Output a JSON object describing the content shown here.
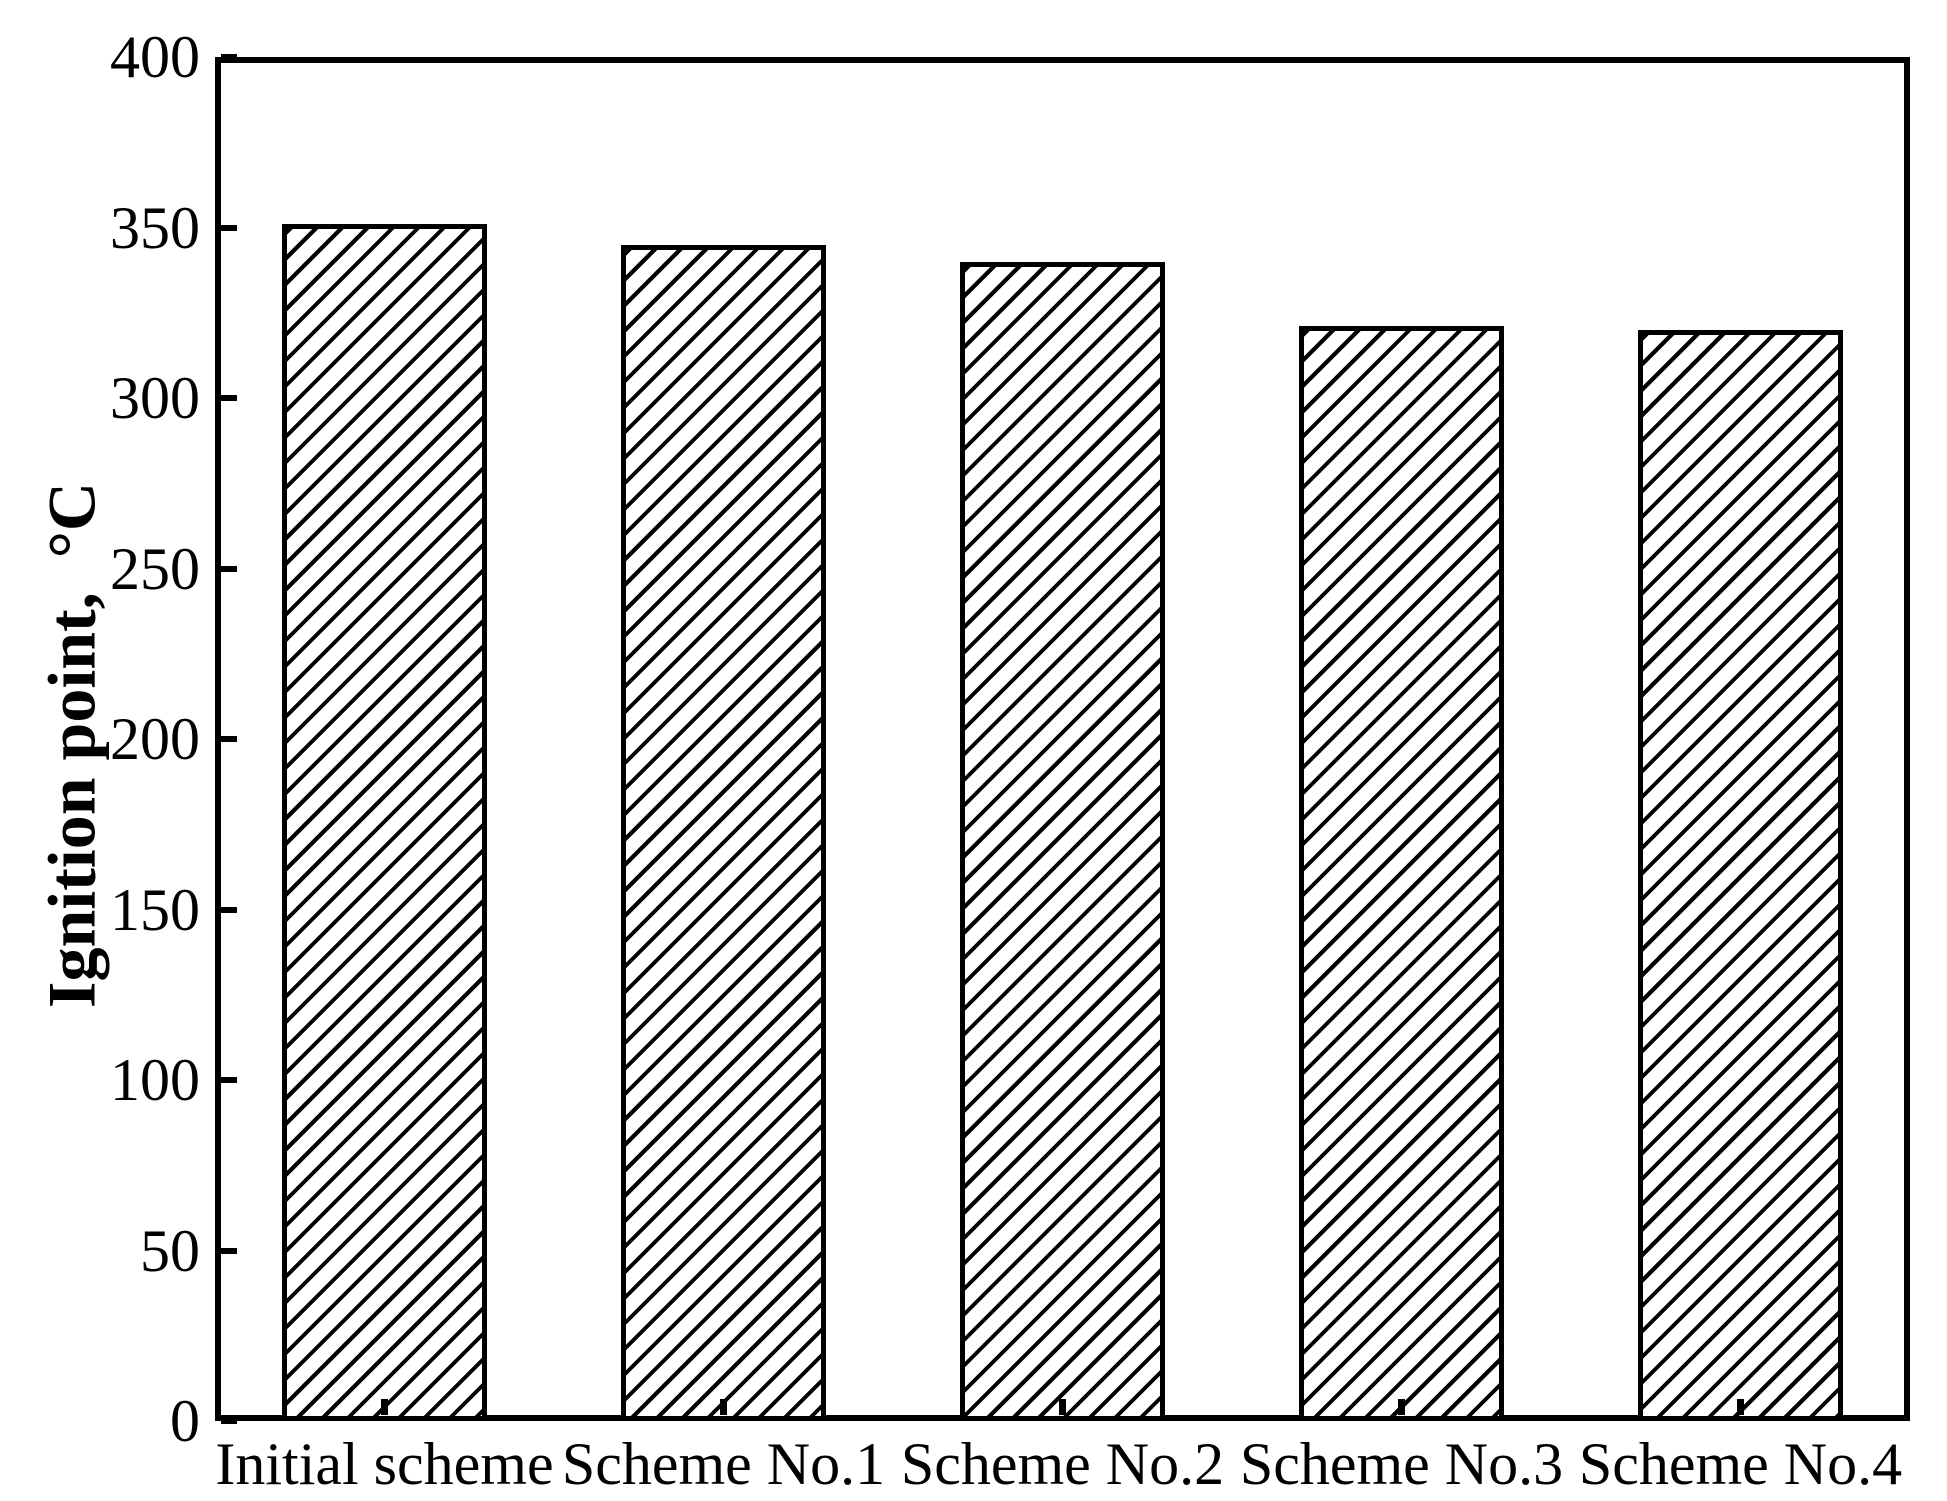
{
  "figure": {
    "background_color": "#ffffff",
    "axis_color": "#000000",
    "bar_fill_style": "diagonal-hatch",
    "bar_hatch_color": "#000000"
  },
  "chart_data": {
    "type": "bar",
    "title": "",
    "categories": [
      "Initial scheme",
      "Scheme No.1",
      "Scheme No.2",
      "Scheme No.3",
      "Scheme No.4"
    ],
    "values": [
      351,
      345,
      340,
      321,
      320
    ],
    "series_name": "Ignition point",
    "xlabel": "",
    "ylabel": "Ignition point,  °C",
    "ylim": [
      0,
      400
    ],
    "yticks": [
      0,
      50,
      100,
      150,
      200,
      250,
      300,
      350,
      400
    ],
    "grid": false,
    "legend": false,
    "frame": "full-box",
    "tick_direction": "in"
  }
}
